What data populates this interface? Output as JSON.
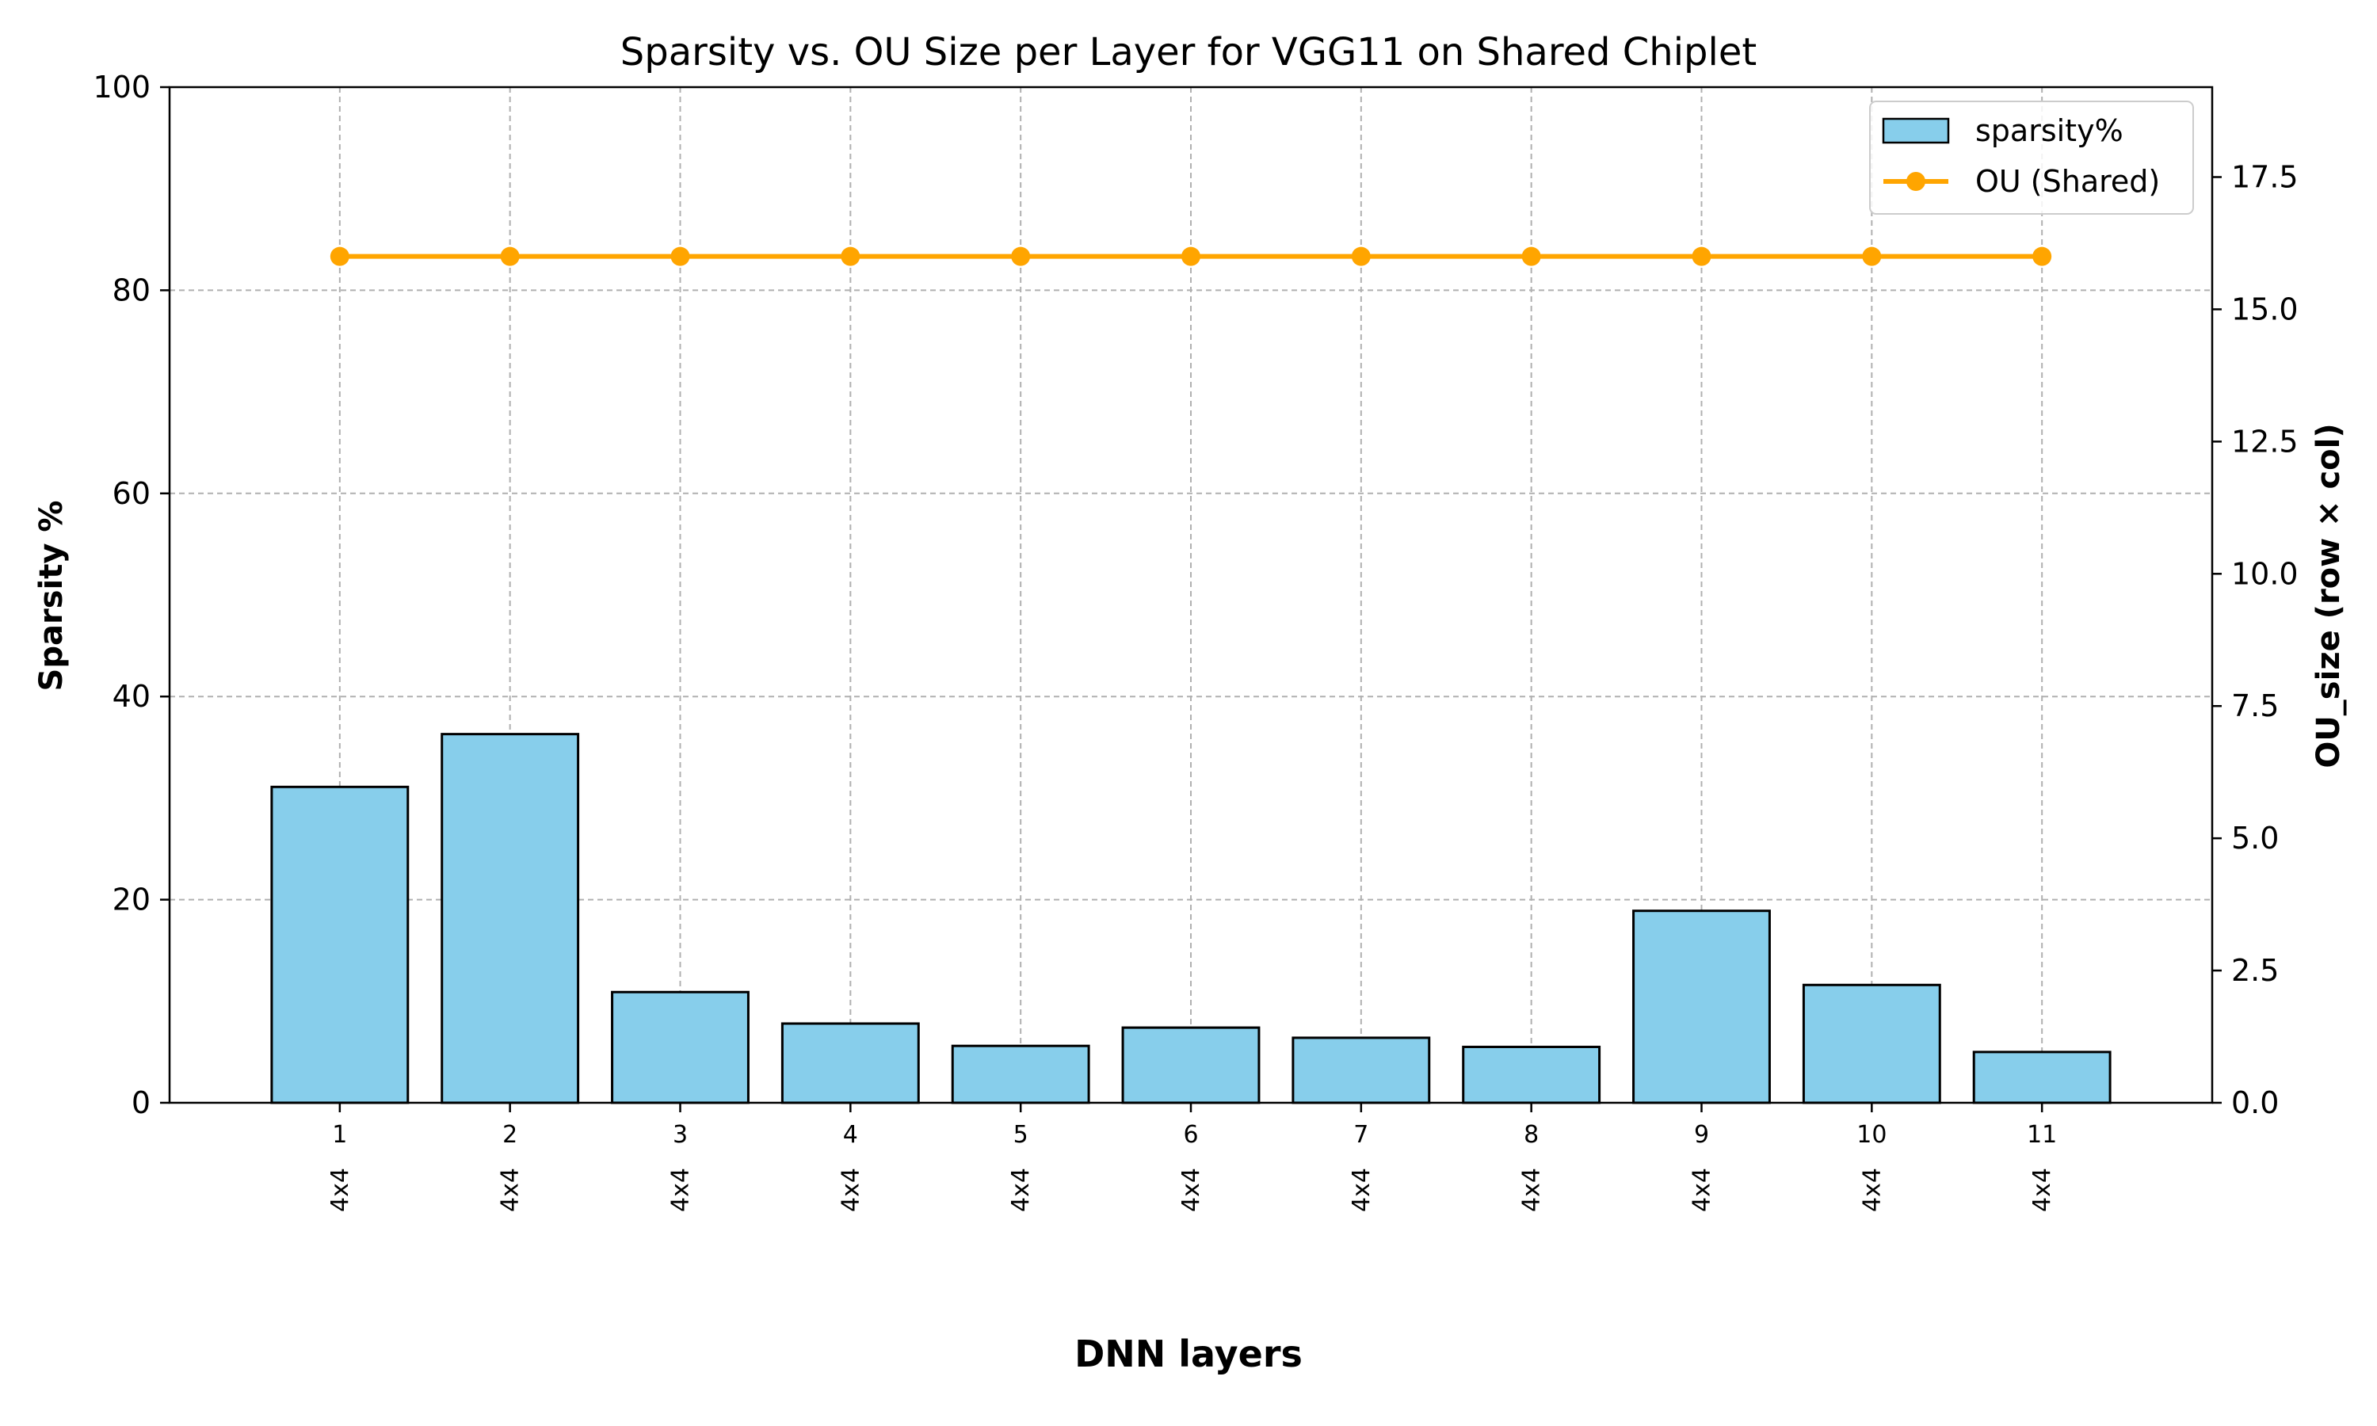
{
  "chart_data": {
    "type": "bar",
    "title": "Sparsity vs. OU Size per Layer for VGG11 on Shared Chiplet",
    "xlabel": "DNN layers",
    "ylabel": "Sparsity %",
    "y2label": "OU_size (row × col)",
    "categories": [
      "1",
      "2",
      "3",
      "4",
      "5",
      "6",
      "7",
      "8",
      "9",
      "10",
      "11"
    ],
    "ou_labels": [
      "4x4",
      "4x4",
      "4x4",
      "4x4",
      "4x4",
      "4x4",
      "4x4",
      "4x4",
      "4x4",
      "4x4",
      "4x4"
    ],
    "series": [
      {
        "name": "sparsity%",
        "type": "bar",
        "axis": "left",
        "color": "#87CEEB",
        "edgecolor": "#000000",
        "values": [
          31.1,
          36.3,
          10.9,
          7.8,
          5.6,
          7.4,
          6.4,
          5.5,
          18.9,
          11.6,
          5.0
        ]
      },
      {
        "name": "OU (Shared)",
        "type": "line",
        "axis": "right",
        "color": "#FFA500",
        "marker": "circle",
        "values": [
          16,
          16,
          16,
          16,
          16,
          16,
          16,
          16,
          16,
          16,
          16
        ]
      }
    ],
    "ylim": [
      0,
      100
    ],
    "yticks": [
      "0",
      "20",
      "40",
      "60",
      "80",
      "100"
    ],
    "y2lim": [
      0,
      19.2
    ],
    "y2ticks": [
      "0.0",
      "2.5",
      "5.0",
      "7.5",
      "10.0",
      "12.5",
      "15.0",
      "17.5"
    ],
    "grid": true,
    "legend_position": "top-right"
  }
}
